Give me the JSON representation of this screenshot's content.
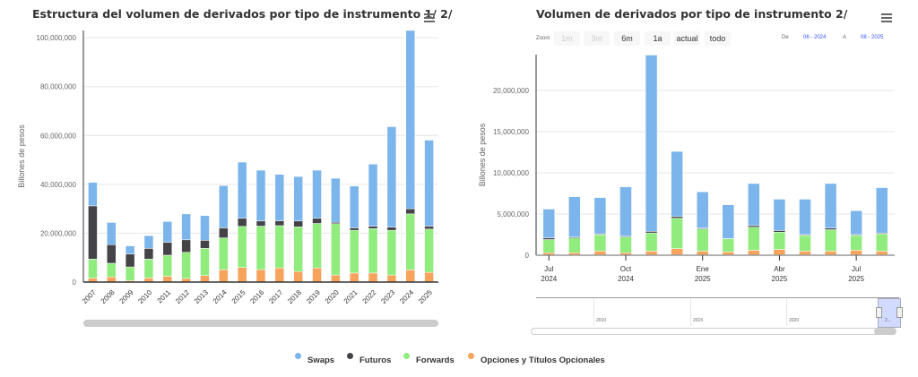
{
  "colors": {
    "swaps": "#7cb5ec",
    "futuros": "#434348",
    "forwards": "#90ed7d",
    "opciones": "#f7a35c"
  },
  "legend": [
    "Swaps",
    "Futuros",
    "Forwards",
    "Opciones y Títulos Opcionales"
  ],
  "chart_data": [
    {
      "type": "bar",
      "stacked": true,
      "title": "Estructura del volumen de derivados por tipo de instrumento 1/ 2/",
      "ylabel": "Billones de pesos",
      "xlabel": "",
      "ylim": [
        0,
        103000000
      ],
      "yticks": [
        0,
        20000000,
        40000000,
        60000000,
        80000000,
        100000000
      ],
      "ytick_labels": [
        "0",
        "20,000,000",
        "40,000,000",
        "60,000,000",
        "80,000,000",
        "100,000,000"
      ],
      "categories": [
        "2007",
        "2008",
        "2009",
        "2010",
        "2011",
        "2012",
        "2013",
        "2014",
        "2015",
        "2016",
        "2017",
        "2018",
        "2019",
        "2020",
        "2021",
        "2022",
        "2023",
        "2024",
        "2025"
      ],
      "series": [
        {
          "name": "Opciones y Títulos Opcionales",
          "values": [
            1600000,
            2100000,
            600000,
            1700000,
            2400000,
            1500000,
            2700000,
            5100000,
            6000000,
            5100000,
            5800000,
            4300000,
            5800000,
            2900000,
            3700000,
            3700000,
            2900000,
            5000000,
            4000000
          ]
        },
        {
          "name": "Forwards",
          "values": [
            7800000,
            5600000,
            5600000,
            7700000,
            8600000,
            10700000,
            11100000,
            13000000,
            16800000,
            17800000,
            17300000,
            18300000,
            18200000,
            21000000,
            17500000,
            18200000,
            18300000,
            22900000,
            17700000
          ]
        },
        {
          "name": "Futuros",
          "values": [
            21800000,
            7600000,
            5300000,
            4400000,
            5300000,
            5100000,
            3300000,
            4100000,
            3300000,
            2100000,
            2000000,
            2400000,
            2100000,
            600000,
            1000000,
            1000000,
            1300000,
            2100000,
            1200000
          ]
        },
        {
          "name": "Swaps",
          "values": [
            9600000,
            9100000,
            3300000,
            5200000,
            8500000,
            10600000,
            10100000,
            17300000,
            23000000,
            20800000,
            19000000,
            18200000,
            19700000,
            18000000,
            17100000,
            25400000,
            41100000,
            73000000,
            35200000
          ]
        }
      ]
    },
    {
      "type": "bar",
      "stacked": true,
      "title": "Volumen de derivados por tipo de instrumento 2/",
      "ylabel": "Billones de pesos",
      "xlabel": "",
      "ylim": [
        0,
        24350000
      ],
      "yticks": [
        0,
        5000000,
        10000000,
        15000000,
        20000000
      ],
      "ytick_labels": [
        "0",
        "5,000,000",
        "10,000,000",
        "15,000,000",
        "20,000,000"
      ],
      "categories": [
        "2024-07",
        "2024-08",
        "2024-09",
        "2024-10",
        "2024-11",
        "2024-12",
        "2025-01",
        "2025-02",
        "2025-03",
        "2025-04",
        "2025-05",
        "2025-06",
        "2025-07",
        "2025-08"
      ],
      "xtick_labels": [
        {
          "index": 0,
          "month": "Jul",
          "year": "2024"
        },
        {
          "index": 3,
          "month": "Oct",
          "year": "2024"
        },
        {
          "index": 6,
          "month": "Ene",
          "year": "2025"
        },
        {
          "index": 9,
          "month": "Abr",
          "year": "2025"
        },
        {
          "index": 12,
          "month": "Jul",
          "year": "2025"
        }
      ],
      "series": [
        {
          "name": "Opciones y Títulos Opcionales",
          "values": [
            300000,
            300000,
            500000,
            300000,
            500000,
            800000,
            500000,
            400000,
            600000,
            700000,
            500000,
            500000,
            600000,
            500000
          ]
        },
        {
          "name": "Forwards",
          "values": [
            1600000,
            1800000,
            2000000,
            1900000,
            2200000,
            3700000,
            2700000,
            1600000,
            2800000,
            2100000,
            1900000,
            2600000,
            1800000,
            2100000
          ]
        },
        {
          "name": "Futuros",
          "values": [
            200000,
            100000,
            100000,
            100000,
            200000,
            200000,
            100000,
            20000,
            200000,
            200000,
            100000,
            200000,
            100000,
            100000
          ]
        },
        {
          "name": "Swaps",
          "values": [
            3500000,
            4900000,
            4400000,
            6000000,
            21400000,
            7900000,
            4400000,
            4100000,
            5100000,
            3800000,
            4300000,
            5400000,
            2900000,
            5500000
          ]
        }
      ]
    }
  ],
  "range_selector": {
    "zoom_label": "Zoom",
    "buttons": [
      "1m",
      "3m",
      "6m",
      "1a",
      "actual",
      "todo"
    ],
    "from_label": "De",
    "from_value": "06 - 2024",
    "to_label": "A",
    "to_value": "08 - 2025"
  },
  "navigator": {
    "labels": [
      "2010",
      "2015",
      "2020",
      "2..."
    ]
  }
}
